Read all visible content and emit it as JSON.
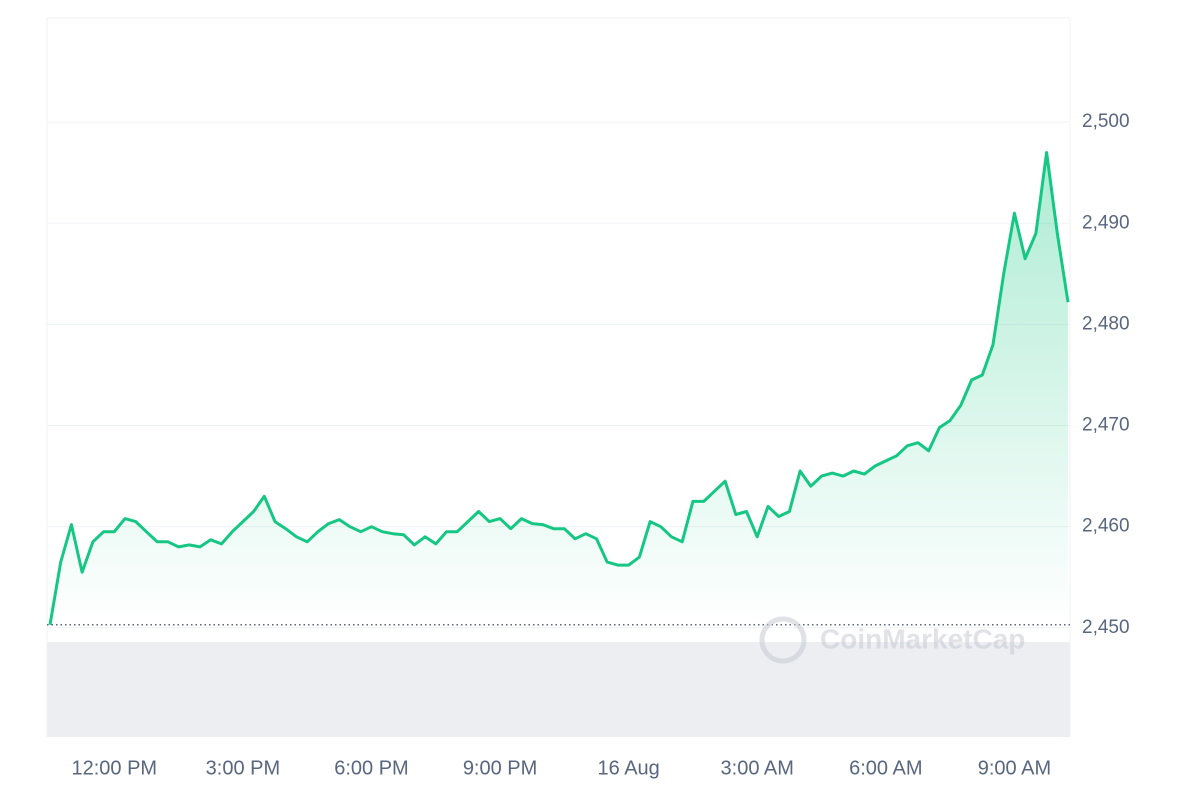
{
  "chart_data": {
    "type": "line",
    "categories": [
      null,
      null,
      null,
      null,
      null,
      null,
      "12:00 PM",
      null,
      null,
      null,
      null,
      null,
      null,
      null,
      null,
      null,
      null,
      null,
      "3:00 PM",
      null,
      null,
      null,
      null,
      null,
      null,
      null,
      null,
      null,
      null,
      null,
      "6:00 PM",
      null,
      null,
      null,
      null,
      null,
      null,
      null,
      null,
      null,
      null,
      null,
      "9:00 PM",
      null,
      null,
      null,
      null,
      null,
      null,
      null,
      null,
      null,
      null,
      null,
      "16 Aug",
      null,
      null,
      null,
      null,
      null,
      null,
      null,
      null,
      null,
      null,
      null,
      "3:00 AM",
      null,
      null,
      null,
      null,
      null,
      null,
      null,
      null,
      null,
      null,
      null,
      "6:00 AM",
      null,
      null,
      null,
      null,
      null,
      null,
      null,
      null,
      null,
      null,
      null,
      "9:00 AM",
      null,
      null,
      null,
      null,
      null
    ],
    "series": [
      {
        "color": "#16c784",
        "values": [
          2450.3,
          2456.5,
          2460.2,
          2455.5,
          2458.5,
          2459.5,
          2459.5,
          2460.8,
          2460.5,
          2459.5,
          2458.5,
          2458.5,
          2458,
          2458.2,
          2458,
          2458.7,
          2458.3,
          2459.5,
          2460.5,
          2461.5,
          2463,
          2460.5,
          2459.8,
          2459,
          2458.5,
          2459.5,
          2460.3,
          2460.7,
          2460,
          2459.5,
          2460,
          2459.5,
          2459.3,
          2459.2,
          2458.2,
          2459,
          2458.3,
          2459.5,
          2459.5,
          2460.5,
          2461.5,
          2460.5,
          2460.8,
          2459.8,
          2460.8,
          2460.3,
          2460.2,
          2459.8,
          2459.8,
          2458.8,
          2459.3,
          2458.8,
          2456.5,
          2456.2,
          2456.2,
          2457,
          2460.5,
          2460,
          2459,
          2458.5,
          2462.5,
          2462.5,
          2463.5,
          2464.5,
          2461.2,
          2461.5,
          2459,
          2462,
          2461,
          2461.5,
          2465.5,
          2464,
          2465,
          2465.3,
          2465,
          2465.5,
          2465.2,
          2466,
          2466.5,
          2467,
          2468,
          2468.3,
          2467.5,
          2469.8,
          2470.5,
          2472,
          2474.5,
          2475,
          2478,
          2485,
          2491,
          2486.5,
          2489,
          2497,
          2489,
          2482.2
        ]
      }
    ],
    "reference_line": 2450.3,
    "ylim": [
      2439.2,
      2510.3
    ],
    "yticks": [
      {
        "value": 2450,
        "label": "2,450"
      },
      {
        "value": 2460,
        "label": "2,460"
      },
      {
        "value": 2470,
        "label": "2,470"
      },
      {
        "value": 2480,
        "label": "2,480"
      },
      {
        "value": 2490,
        "label": "2,490"
      },
      {
        "value": 2500,
        "label": "2,500"
      }
    ],
    "grid": true,
    "watermark": "CoinMarketCap"
  }
}
